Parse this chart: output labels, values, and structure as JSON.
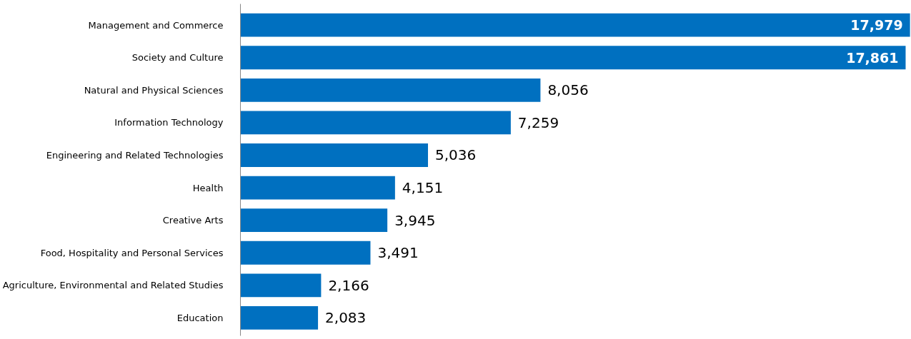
{
  "chart_data": {
    "type": "bar",
    "orientation": "horizontal",
    "categories": [
      "Management and Commerce",
      "Society and Culture",
      "Natural and Physical Sciences",
      "Information Technology",
      "Engineering and Related Technologies",
      "Health",
      "Creative Arts",
      "Food, Hospitality and Personal Services",
      "Agriculture, Environmental and Related Studies",
      "Education"
    ],
    "values": [
      17979,
      17861,
      8056,
      7259,
      5036,
      4151,
      3945,
      3491,
      2166,
      2083
    ],
    "value_labels": [
      "17,979",
      "17,861",
      "8,056",
      "7,259",
      "5,036",
      "4,151",
      "3,945",
      "3,491",
      "2,166",
      "2,083"
    ],
    "color": "#0070c0"
  }
}
